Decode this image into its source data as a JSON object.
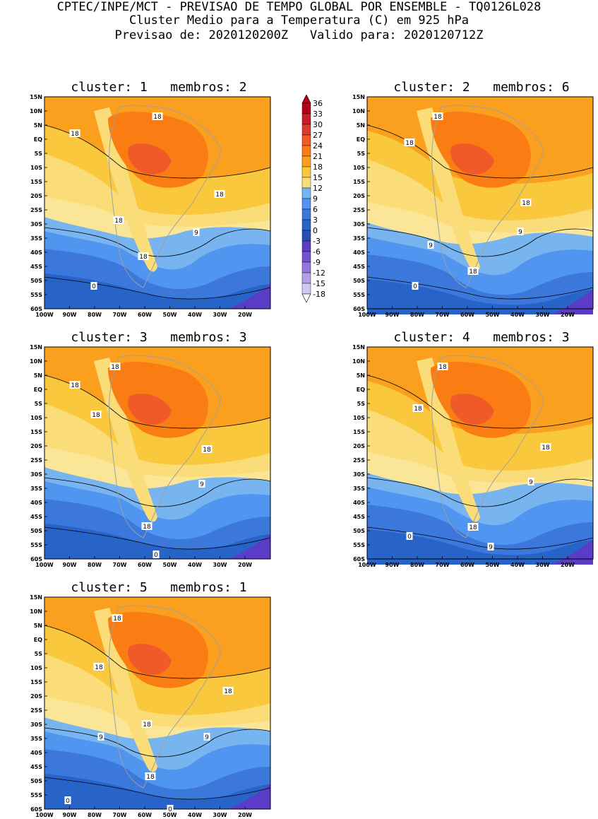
{
  "header": {
    "line1": "CPTEC/INPE/MCT - PREVISAO DE TEMPO GLOBAL POR ENSEMBLE - TQ0126L028",
    "line2": "Cluster Medio para a Temperatura (C) em 925 hPa",
    "line3": "Previsao de: 2020120200Z   Valido para: 2020120712Z"
  },
  "colorbar": {
    "labels": [
      "36",
      "33",
      "30",
      "27",
      "24",
      "21",
      "18",
      "15",
      "12",
      "9",
      "6",
      "3",
      "0",
      "-3",
      "-6",
      "-9",
      "-12",
      "-15",
      "-18"
    ],
    "colors": [
      "#b40019",
      "#c81e28",
      "#dc3c2d",
      "#f05a28",
      "#fa7d14",
      "#faa01e",
      "#fac83c",
      "#fadc78",
      "#78b4f0",
      "#5096f0",
      "#3c78dc",
      "#2864c8",
      "#2850b4",
      "#5a3cc8",
      "#7850d2",
      "#9678dc",
      "#b4a0e6",
      "#d2c8f0"
    ]
  },
  "axes": {
    "lat_labels": [
      "15N",
      "10N",
      "5N",
      "EQ",
      "5S",
      "10S",
      "15S",
      "20S",
      "25S",
      "30S",
      "35S",
      "40S",
      "45S",
      "50S",
      "55S",
      "60S"
    ],
    "lon_labels": [
      "100W",
      "90W",
      "80W",
      "70W",
      "60W",
      "50W",
      "40W",
      "30W",
      "20W"
    ]
  },
  "panels": [
    {
      "title": "cluster: 1   membros: 2",
      "contour_labels": {
        "l18a": "18",
        "l18b": "18",
        "l18c": "18",
        "l18d": "18",
        "l18e": "18",
        "l9": "9",
        "l0": "0"
      }
    },
    {
      "title": "cluster: 2   membros: 6",
      "contour_labels": {
        "l18a": "18",
        "l18b": "18",
        "l18c": "18",
        "l18d": "18",
        "l9a": "9",
        "l9b": "9",
        "l0": "0"
      }
    },
    {
      "title": "cluster: 3   membros: 3",
      "contour_labels": {
        "l18a": "18",
        "l18b": "18",
        "l18c": "18",
        "l18d": "18",
        "l18e": "18",
        "l9": "9",
        "l0": "0"
      }
    },
    {
      "title": "cluster: 4   membros: 3",
      "contour_labels": {
        "l18a": "18",
        "l18b": "18",
        "l18c": "18",
        "l18d": "18",
        "l9a": "9",
        "l9b": "9",
        "l0": "0"
      }
    },
    {
      "title": "cluster: 5   membros: 1",
      "contour_labels": {
        "l18a": "18",
        "l18b": "18",
        "l18c": "18",
        "l18d": "18",
        "l18e": "18",
        "l9a": "9",
        "l9b": "9",
        "l0a": "0",
        "l0b": "0"
      }
    }
  ]
}
